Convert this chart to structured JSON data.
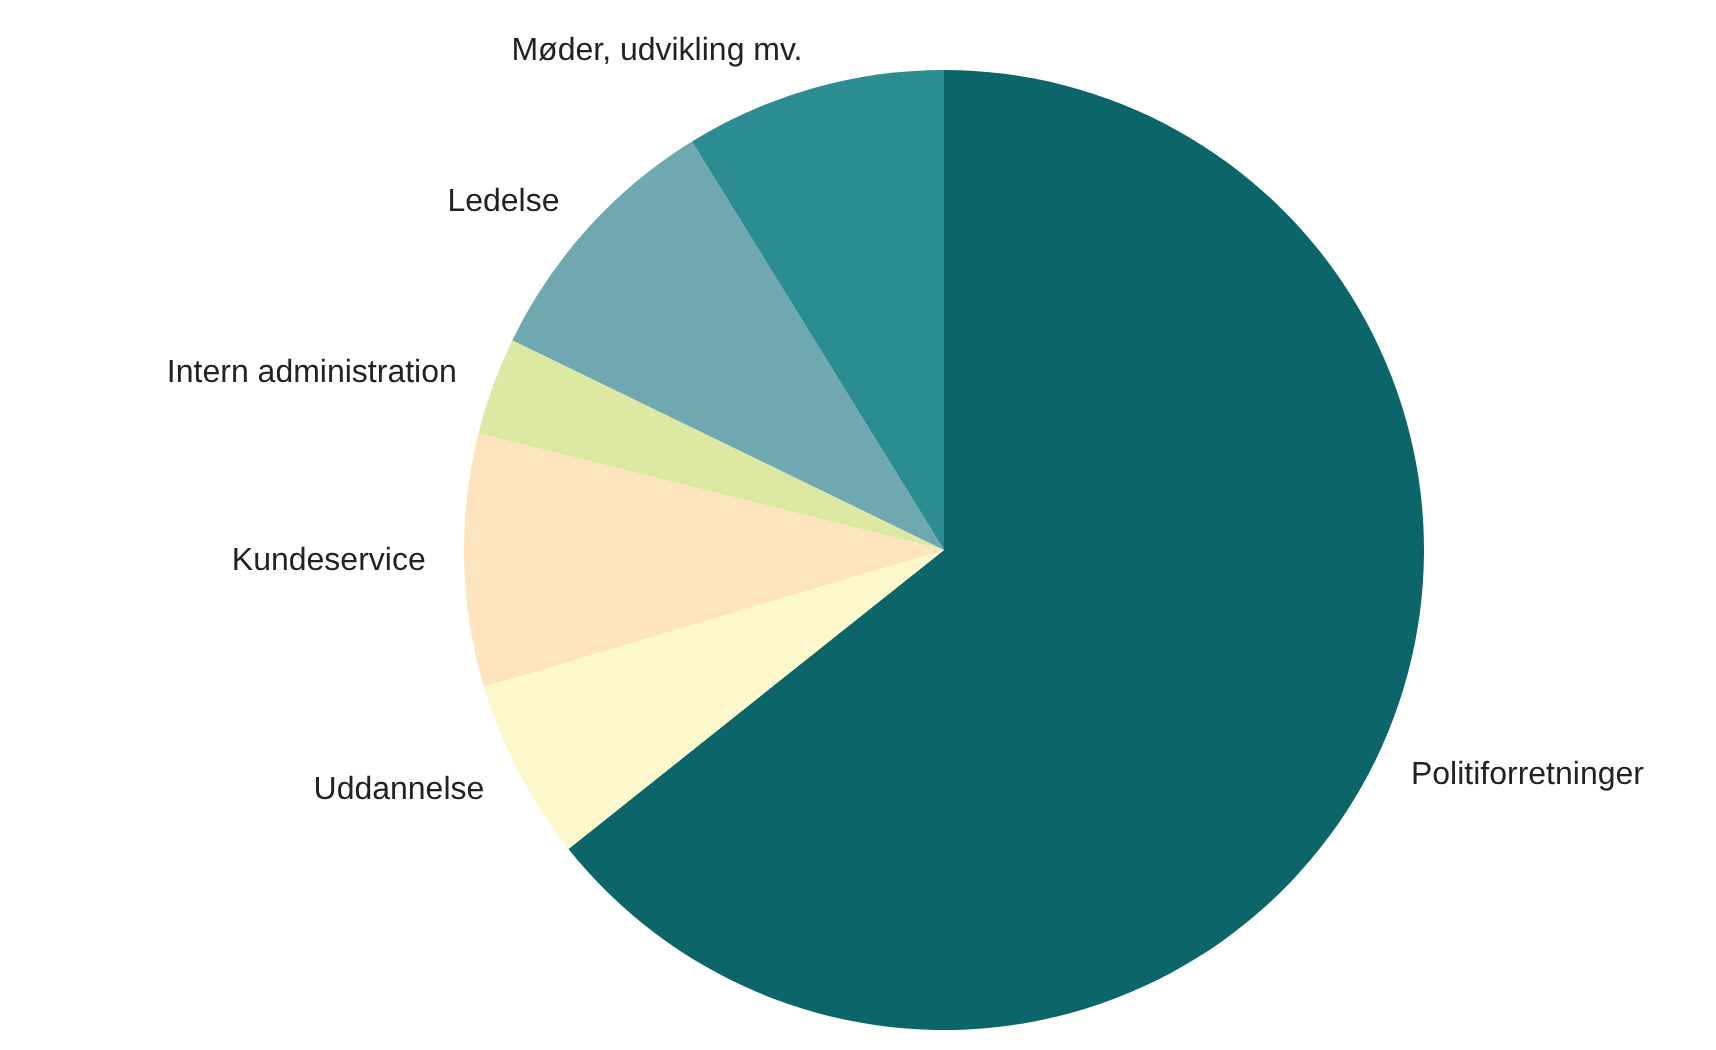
{
  "chart_data": {
    "type": "pie",
    "categories": [
      "Politiforretninger",
      "Uddannelse",
      "Kundeservice",
      "Intern administration",
      "Ledelse",
      "Møder, udvikling mv."
    ],
    "values": [
      64.3,
      6.1,
      8.5,
      3.3,
      9.0,
      8.8
    ],
    "colors": [
      "#0b6569",
      "#fcf8cb",
      "#fde4bf",
      "#dde8a3",
      "#6fa8b0",
      "#2b8c91"
    ],
    "legend": false
  }
}
